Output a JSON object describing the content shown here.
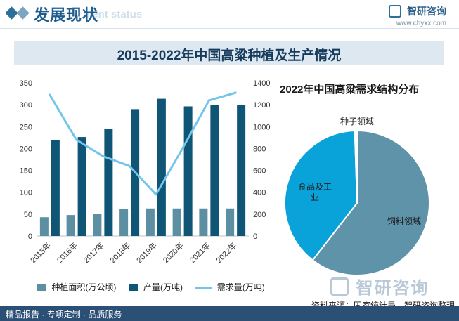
{
  "header": {
    "title": "发展现状",
    "subtitle": "ment status",
    "brand_name": "智研咨询",
    "brand_url": "www.chyxx.com"
  },
  "banner": {
    "title": "2015-2022年中国高粱种植及生产情况"
  },
  "colors": {
    "area": "#5d8fa3",
    "production": "#0e5576",
    "demand": "#73c6ea",
    "pie_feed": "#5e93aa",
    "pie_food": "#0aa3d9",
    "pie_seed": "#9fc4d4"
  },
  "chart_data": [
    {
      "type": "bar",
      "categories": [
        "2015年",
        "2016年",
        "2017年",
        "2018年",
        "2019年",
        "2020年",
        "2021年",
        "2022年"
      ],
      "ylim_left": [
        0,
        350
      ],
      "yticks_left": [
        "0",
        "50",
        "100",
        "150",
        "200",
        "250",
        "300",
        "350"
      ],
      "ylim_right": [
        0,
        1400
      ],
      "yticks_right": [
        "0",
        "200",
        "400",
        "600",
        "800",
        "1000",
        "1200",
        "1400"
      ],
      "series": [
        {
          "name": "种植面积(万公顷)",
          "type": "bar",
          "axis": "left",
          "values": [
            43,
            48,
            51,
            61,
            63,
            63,
            63,
            63
          ]
        },
        {
          "name": "产量(万吨)",
          "type": "bar",
          "axis": "right",
          "values": [
            880,
            905,
            980,
            1160,
            1255,
            1185,
            1195,
            1195
          ]
        },
        {
          "name": "需求量(万吨)",
          "type": "line",
          "axis": "right",
          "values": [
            1290,
            880,
            730,
            640,
            380,
            800,
            1240,
            1310
          ]
        }
      ]
    },
    {
      "type": "pie",
      "title": "2022年中国高粱需求结构分布",
      "slices": [
        {
          "label": "饲料领域",
          "value": 60.5
        },
        {
          "label": "食品及工业",
          "value": 39.0
        },
        {
          "label": "种子领域",
          "value": 0.5
        }
      ]
    }
  ],
  "footer": {
    "text": "精品报告 · 专项定制 · 品质服务",
    "source": "资料来源：国家统计局、智研咨询整理",
    "watermark": "智研咨询"
  }
}
